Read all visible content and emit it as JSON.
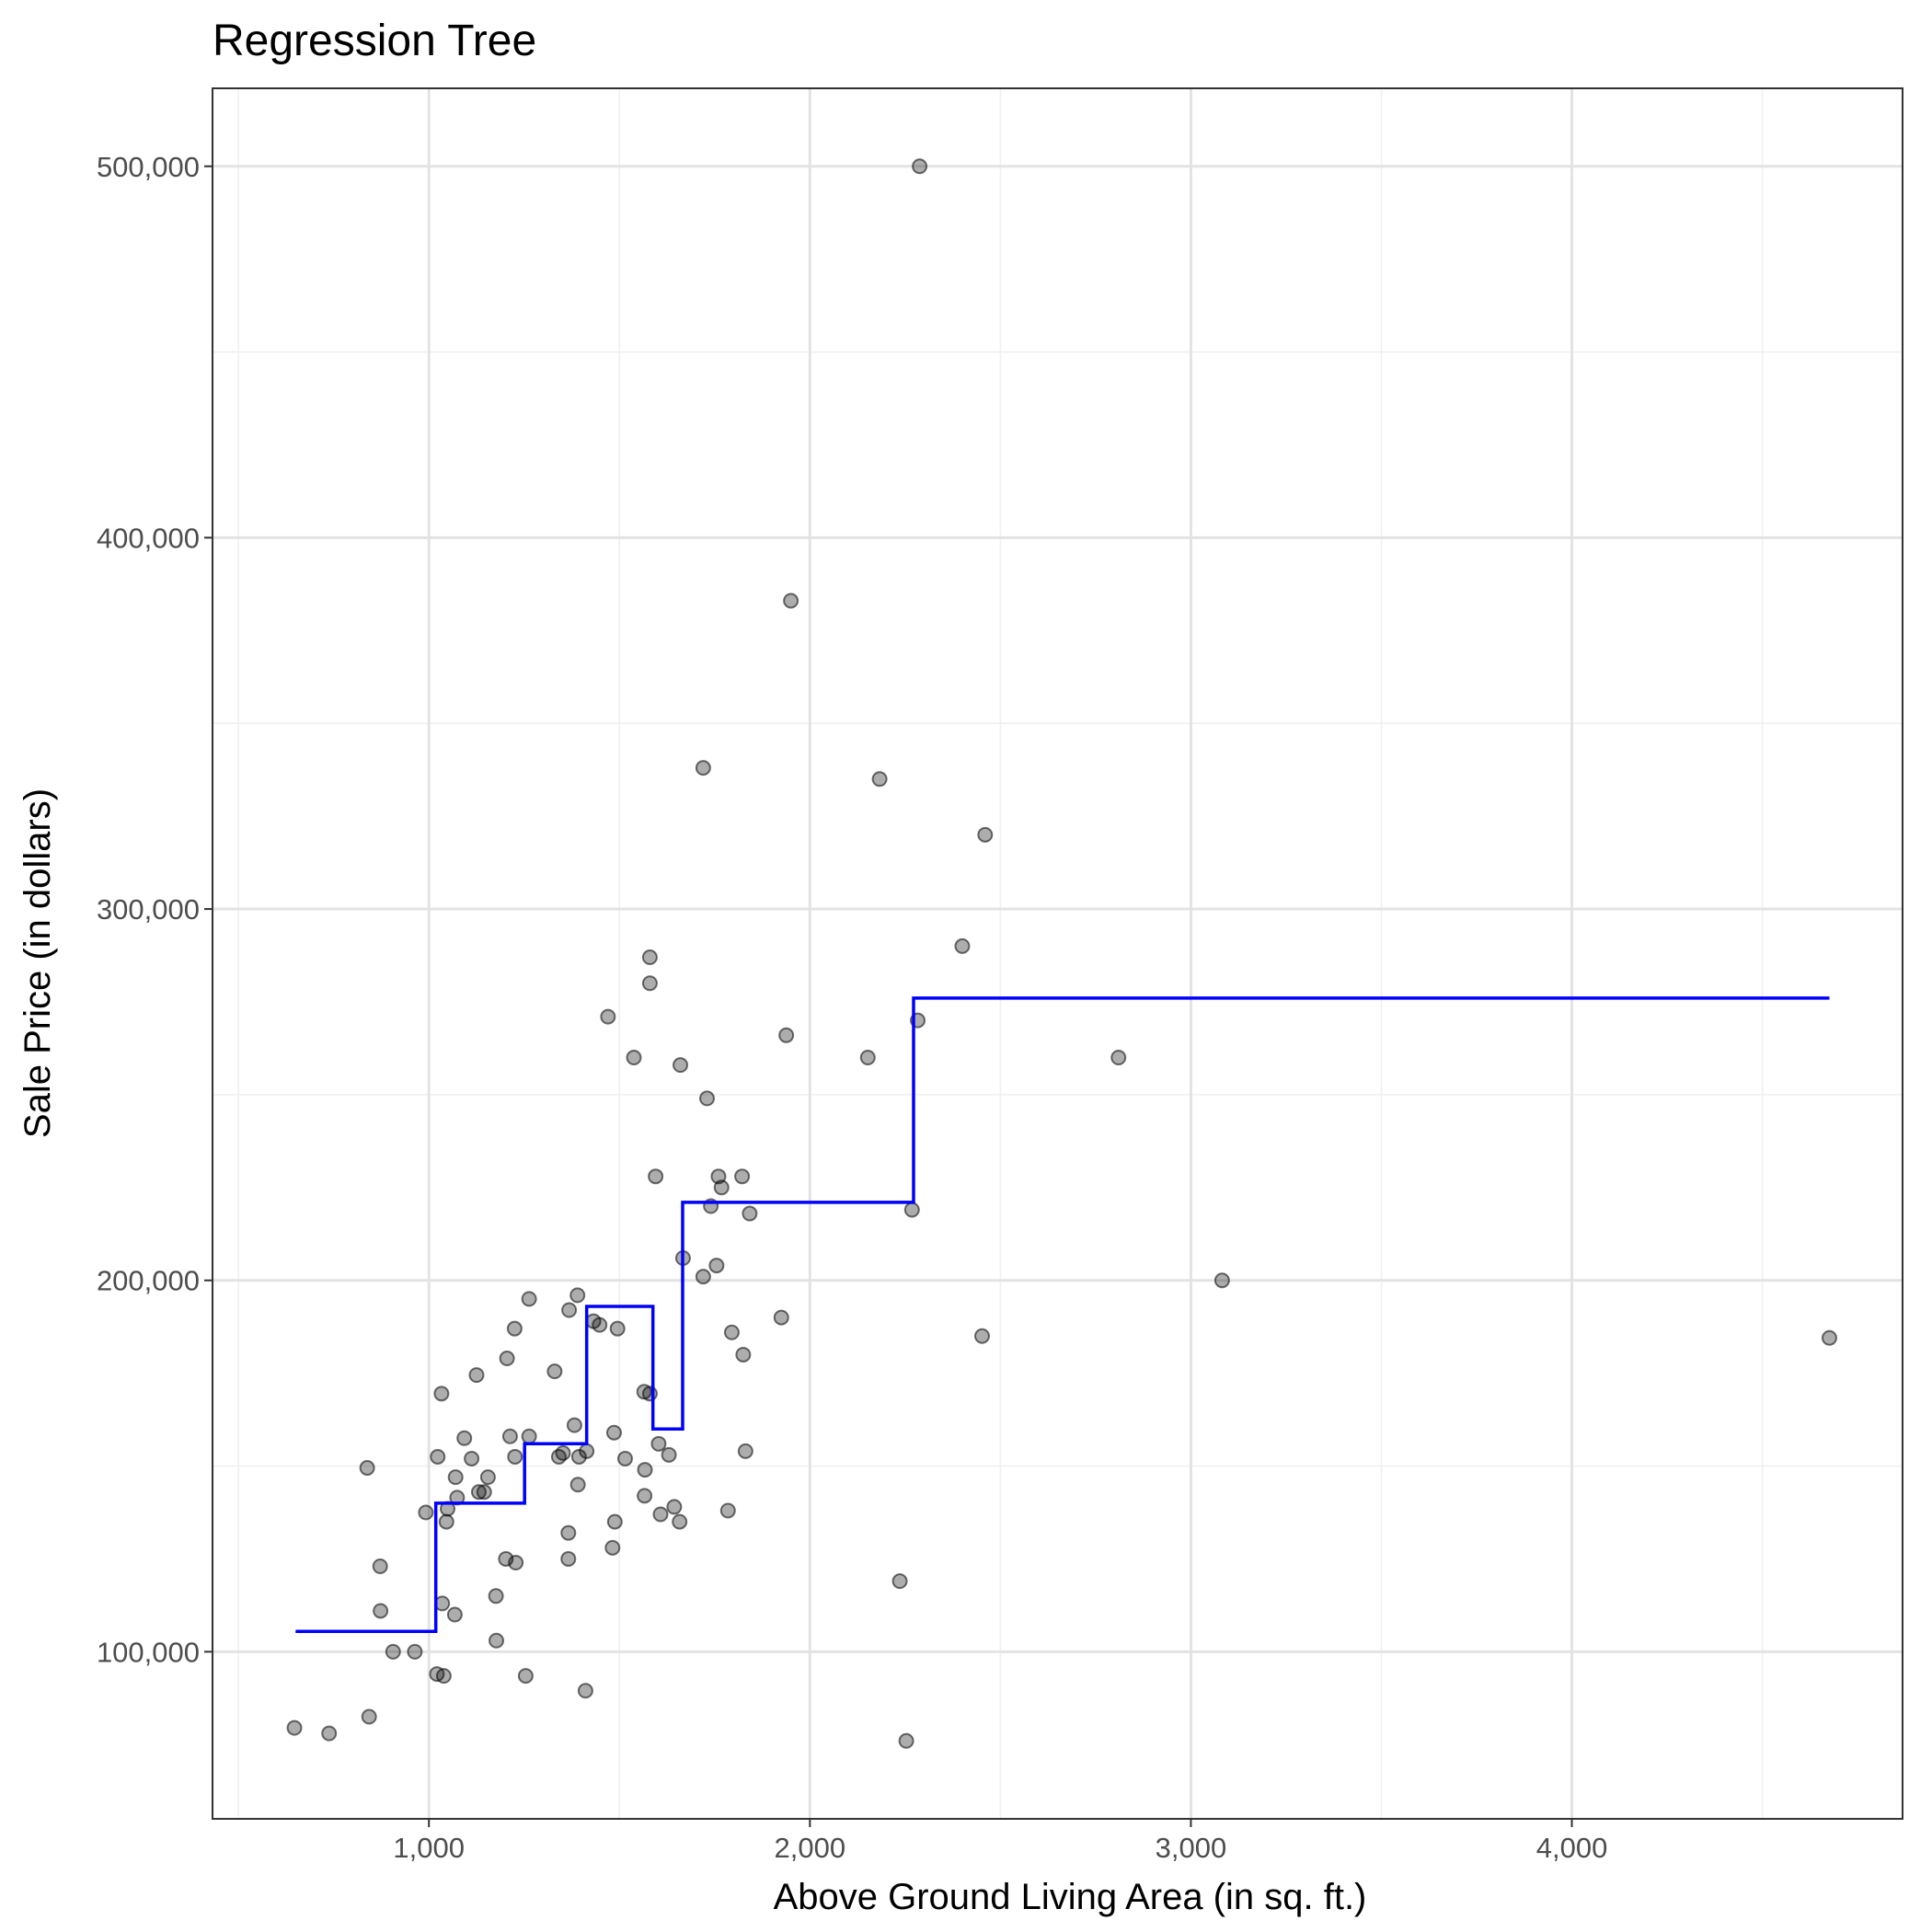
{
  "chart_data": {
    "type": "scatter",
    "title": "Regression Tree",
    "xlabel": "Above Ground Living Area (in sq. ft.)",
    "ylabel": "Sale Price (in dollars)",
    "xlim": [
      432,
      4868
    ],
    "ylim": [
      55000,
      521000
    ],
    "x_ticks": [
      1000,
      2000,
      3000,
      4000
    ],
    "x_tick_labels": [
      "1,000",
      "2,000",
      "3,000",
      "4,000"
    ],
    "y_ticks": [
      100000,
      200000,
      300000,
      400000,
      500000
    ],
    "y_tick_labels": [
      "100,000",
      "200,000",
      "300,000",
      "400,000",
      "500,000"
    ],
    "grid": true,
    "point_color": "#000000",
    "line_color": "#0000ff",
    "points": [
      [
        2288,
        500000
      ],
      [
        1950,
        383000
      ],
      [
        1720,
        338000
      ],
      [
        2183,
        335000
      ],
      [
        2460,
        320000
      ],
      [
        2400,
        290000
      ],
      [
        1580,
        287000
      ],
      [
        1580,
        280000
      ],
      [
        1470,
        271000
      ],
      [
        2283,
        270000
      ],
      [
        1938,
        266000
      ],
      [
        1538,
        260000
      ],
      [
        2152,
        260000
      ],
      [
        2810,
        260000
      ],
      [
        1660,
        258000
      ],
      [
        1730,
        249000
      ],
      [
        1595,
        228000
      ],
      [
        1760,
        228000
      ],
      [
        1822,
        228000
      ],
      [
        1768,
        225000
      ],
      [
        1740,
        220000
      ],
      [
        2268,
        219000
      ],
      [
        1842,
        218000
      ],
      [
        1667,
        206000
      ],
      [
        1755,
        204000
      ],
      [
        1720,
        201000
      ],
      [
        3082,
        200000
      ],
      [
        1390,
        196000
      ],
      [
        1263,
        195000
      ],
      [
        1368,
        192000
      ],
      [
        1925,
        190000
      ],
      [
        1432,
        189000
      ],
      [
        1448,
        188000
      ],
      [
        1495,
        187000
      ],
      [
        1225,
        187000
      ],
      [
        1795,
        186000
      ],
      [
        2452,
        185000
      ],
      [
        4676,
        184500
      ],
      [
        1825,
        180000
      ],
      [
        1205,
        179000
      ],
      [
        1330,
        175500
      ],
      [
        1125,
        174500
      ],
      [
        1565,
        170000
      ],
      [
        1580,
        169500
      ],
      [
        1033,
        169500
      ],
      [
        1382,
        161000
      ],
      [
        1213,
        158000
      ],
      [
        1263,
        158000
      ],
      [
        1486,
        159000
      ],
      [
        1093,
        157500
      ],
      [
        1603,
        156000
      ],
      [
        1414,
        154000
      ],
      [
        1352,
        153500
      ],
      [
        1831,
        154000
      ],
      [
        1630,
        153000
      ],
      [
        1341,
        152500
      ],
      [
        1394,
        152500
      ],
      [
        1226,
        152500
      ],
      [
        1023,
        152500
      ],
      [
        1112,
        152000
      ],
      [
        1515,
        152000
      ],
      [
        1567,
        149000
      ],
      [
        838,
        149500
      ],
      [
        1155,
        147000
      ],
      [
        1070,
        147000
      ],
      [
        1391,
        145000
      ],
      [
        1131,
        143000
      ],
      [
        1145,
        143000
      ],
      [
        1566,
        142000
      ],
      [
        1074,
        141500
      ],
      [
        1644,
        139000
      ],
      [
        1049,
        138500
      ],
      [
        1608,
        137000
      ],
      [
        992,
        137500
      ],
      [
        1785,
        138000
      ],
      [
        1046,
        135000
      ],
      [
        1488,
        135000
      ],
      [
        1658,
        135000
      ],
      [
        1366,
        132000
      ],
      [
        1482,
        128000
      ],
      [
        1202,
        125000
      ],
      [
        1228,
        124000
      ],
      [
        1366,
        125000
      ],
      [
        872,
        123000
      ],
      [
        2236,
        119000
      ],
      [
        1176,
        115000
      ],
      [
        873,
        111000
      ],
      [
        1035,
        113000
      ],
      [
        1068,
        110000
      ],
      [
        1177,
        103000
      ],
      [
        906,
        100000
      ],
      [
        963,
        100000
      ],
      [
        1021,
        94000
      ],
      [
        1039,
        93500
      ],
      [
        1254,
        93500
      ],
      [
        1411,
        89500
      ],
      [
        843,
        82500
      ],
      [
        647,
        79500
      ],
      [
        738,
        78000
      ],
      [
        2253,
        76000
      ]
    ],
    "step_line": [
      [
        650,
        105500
      ],
      [
        1018,
        105500
      ],
      [
        1018,
        140000
      ],
      [
        1251,
        140000
      ],
      [
        1251,
        156000
      ],
      [
        1414,
        156000
      ],
      [
        1414,
        193000
      ],
      [
        1588,
        193000
      ],
      [
        1588,
        160000
      ],
      [
        1666,
        160000
      ],
      [
        1666,
        221000
      ],
      [
        2272,
        221000
      ],
      [
        2272,
        276000
      ],
      [
        4676,
        276000
      ]
    ]
  }
}
